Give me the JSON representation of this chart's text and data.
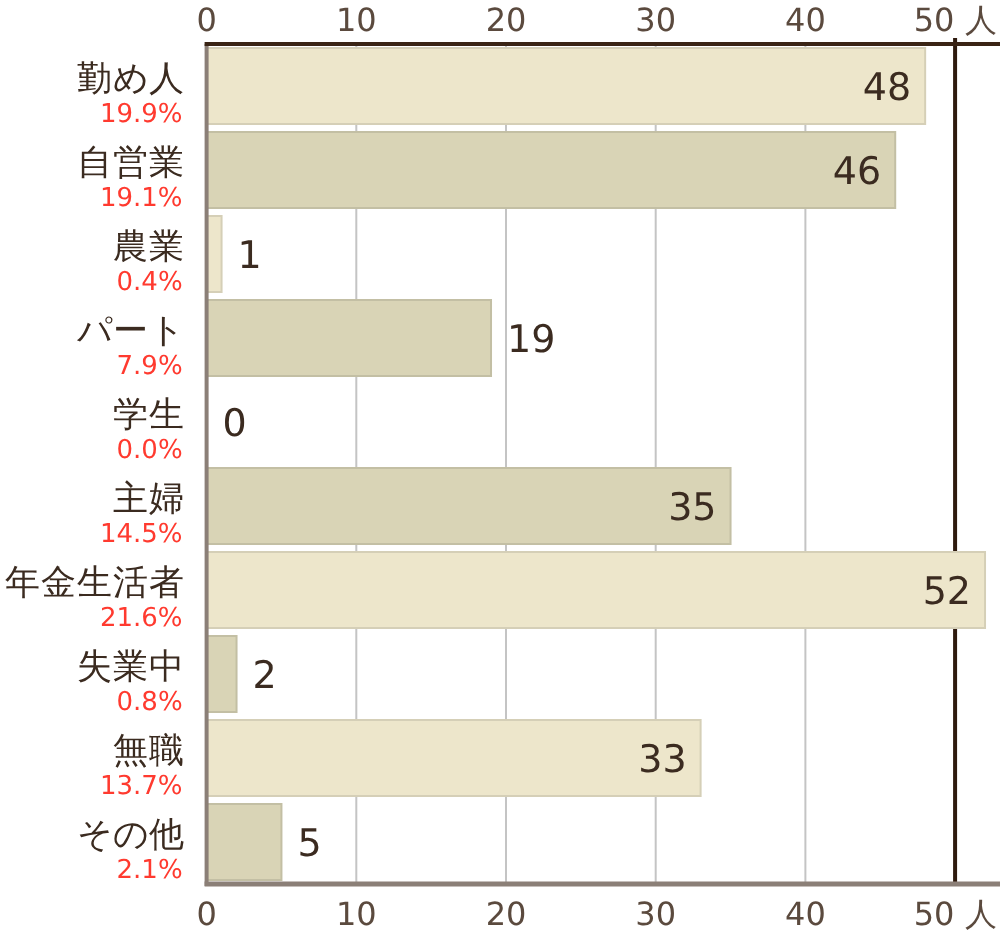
{
  "chart_data": {
    "type": "bar",
    "orientation": "horizontal",
    "categories": [
      "勤め人",
      "自営業",
      "農業",
      "パート",
      "学生",
      "主婦",
      "年金生活者",
      "失業中",
      "無職",
      "その他"
    ],
    "values": [
      48,
      46,
      1,
      19,
      0,
      35,
      52,
      2,
      33,
      5
    ],
    "colors": [
      "#ede6cb",
      "#d9d4b6",
      "#ede6cb",
      "#d9d4b6",
      "#ede6cb",
      "#d9d4b6",
      "#ede6cb",
      "#d9d4b6",
      "#ede6cb",
      "#d9d4b6"
    ],
    "data_labels": true,
    "xlim": [
      0,
      53
    ],
    "xticks": [
      0,
      10,
      20,
      30,
      40,
      {
        "value": 50,
        "label": "50 人"
      }
    ],
    "x2lim": [
      0,
      53
    ],
    "x2ticks": [
      0,
      10,
      20,
      30,
      40,
      {
        "value": 50,
        "label": "50 人"
      }
    ],
    "grid": "x",
    "ref_lines": [
      {
        "axis": "x",
        "value": 50,
        "color": "#2e1a0e"
      }
    ],
    "annotations": [
      "19.9%",
      "19.1%",
      "0.4%",
      "7.9%",
      "0.0%",
      "14.5%",
      "21.6%",
      "0.8%",
      "13.7%",
      "2.1%"
    ]
  }
}
